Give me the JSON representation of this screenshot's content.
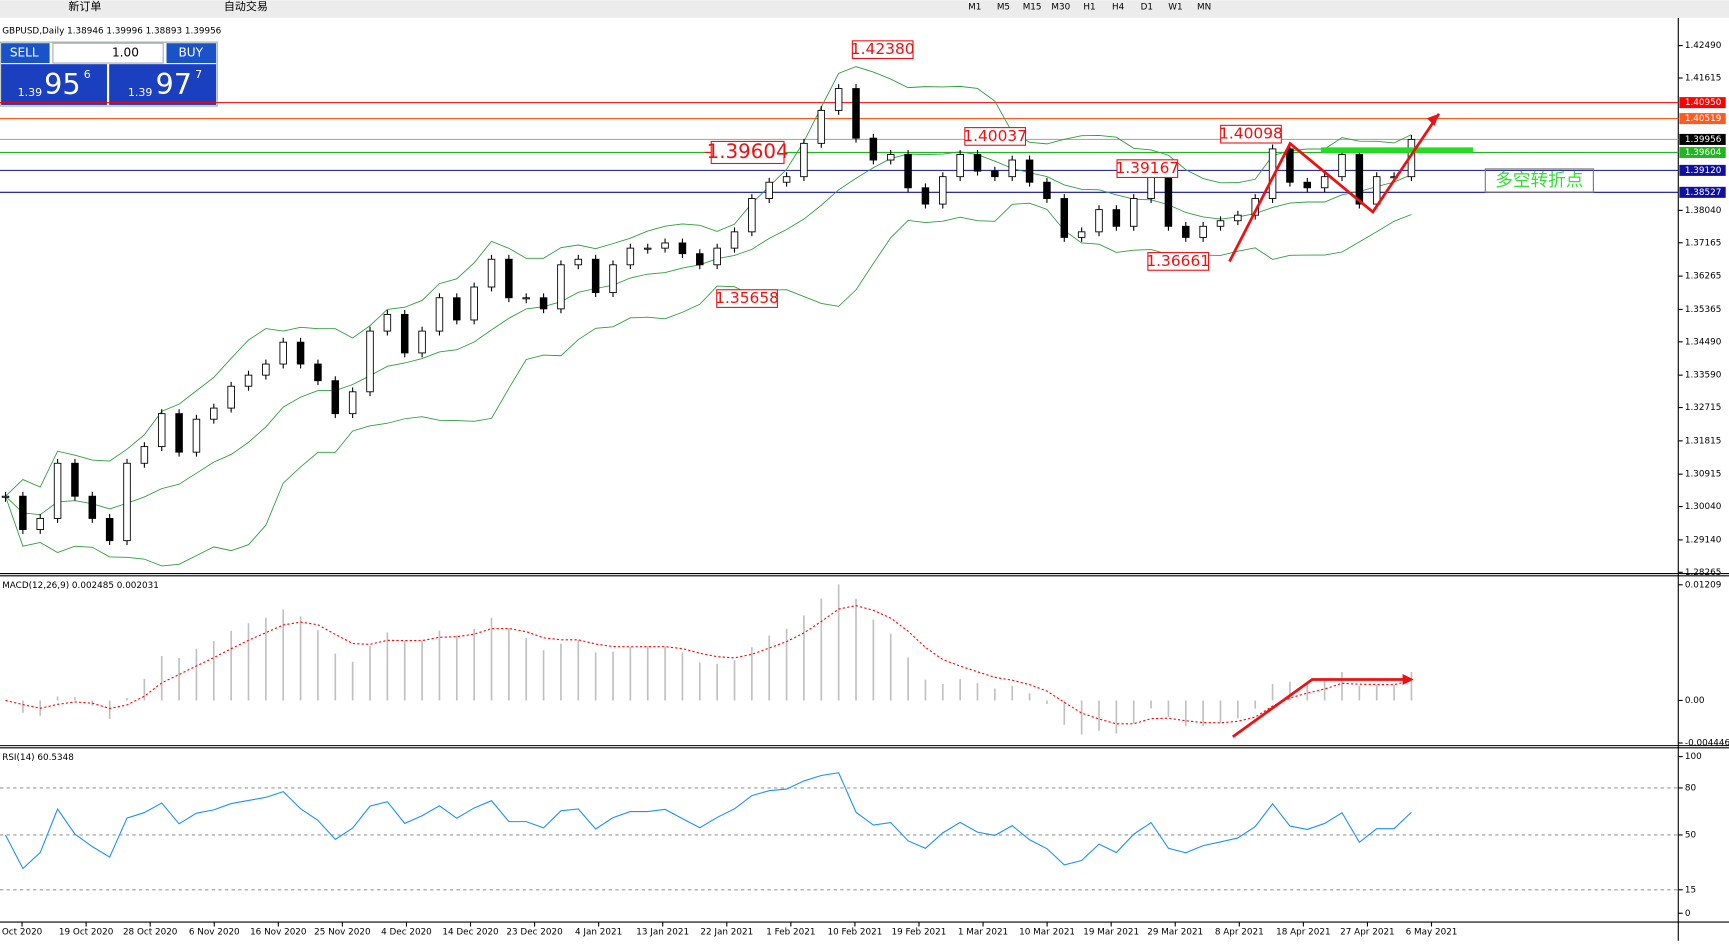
{
  "toolbar": {
    "new_order": "新订单",
    "auto_trade": "自动交易",
    "timeframes": [
      "M1",
      "M5",
      "M15",
      "M30",
      "H1",
      "H4",
      "D1",
      "W1",
      "MN"
    ]
  },
  "trade_panel": {
    "sell": "SELL",
    "buy": "BUY",
    "lots": "1.00",
    "bid": {
      "prefix": "1.39",
      "big": "95",
      "small": "6"
    },
    "ask": {
      "prefix": "1.39",
      "big": "97",
      "small": "7"
    }
  },
  "chart_data": [
    {
      "type": "candlestick",
      "title": "GBPUSD,Daily  1.38946 1.39996 1.38893 1.39956",
      "categories": [
        "Oct 2020",
        "19 Oct 2020",
        "28 Oct 2020",
        "6 Nov 2020",
        "16 Nov 2020",
        "25 Nov 2020",
        "4 Dec 2020",
        "14 Dec 2020",
        "23 Dec 2020",
        "4 Jan 2021",
        "13 Jan 2021",
        "22 Jan 2021",
        "1 Feb 2021",
        "10 Feb 2021",
        "19 Feb 2021",
        "1 Mar 2021",
        "10 Mar 2021",
        "19 Mar 2021",
        "29 Mar 2021",
        "8 Apr 2021",
        "18 Apr 2021",
        "27 Apr 2021",
        "6 May 2021"
      ],
      "closes": [
        1.3032,
        1.2942,
        1.2972,
        1.3121,
        1.3032,
        1.2972,
        1.2912,
        1.3121,
        1.3166,
        1.3255,
        1.3151,
        1.324,
        1.327,
        1.3329,
        1.3359,
        1.3389,
        1.3448,
        1.3389,
        1.3344,
        1.3255,
        1.3314,
        1.3478,
        1.3523,
        1.3419,
        1.3478,
        1.3568,
        1.3508,
        1.3597,
        1.3672,
        1.3568,
        1.3568,
        1.3538,
        1.3657,
        1.3672,
        1.3582,
        1.3657,
        1.3702,
        1.3702,
        1.3716,
        1.3687,
        1.3657,
        1.3702,
        1.3746,
        1.3836,
        1.388,
        1.3895,
        1.3985,
        1.4074,
        1.4133,
        1.3999,
        1.394,
        1.3955,
        1.3865,
        1.3821,
        1.3895,
        1.3955,
        1.391,
        1.3895,
        1.394,
        1.388,
        1.3836,
        1.3731,
        1.3746,
        1.3806,
        1.3761,
        1.3836,
        1.3895,
        1.3761,
        1.3731,
        1.3761,
        1.3776,
        1.3791,
        1.3836,
        1.397,
        1.388,
        1.3865,
        1.3895,
        1.3955,
        1.3821,
        1.3895,
        1.3895,
        1.39956
      ],
      "color_up": "#ffffff",
      "color_down": "#000000",
      "band_color": "#2e9e3e",
      "ylim": [
        1.2823,
        1.4318
      ],
      "yticks": [
        {
          "value": 1.4249,
          "label": "1.42490"
        },
        {
          "value": 1.41615,
          "label": "1.41615"
        },
        {
          "value": 1.3804,
          "label": "1.38040"
        },
        {
          "value": 1.37165,
          "label": "1.37165"
        },
        {
          "value": 1.36265,
          "label": "1.36265"
        },
        {
          "value": 1.35365,
          "label": "1.35365"
        },
        {
          "value": 1.3449,
          "label": "1.34490"
        },
        {
          "value": 1.3359,
          "label": "1.33590"
        },
        {
          "value": 1.32715,
          "label": "1.32715"
        },
        {
          "value": 1.31815,
          "label": "1.31815"
        },
        {
          "value": 1.30915,
          "label": "1.30915"
        },
        {
          "value": 1.3004,
          "label": "1.30040"
        },
        {
          "value": 1.2914,
          "label": "1.29140"
        },
        {
          "value": 1.28265,
          "label": "1.28265"
        }
      ],
      "levels": [
        {
          "value": 1.4095,
          "label": "1.40950",
          "color": "#ff0000"
        },
        {
          "value": 1.40519,
          "label": "1.40519",
          "color": "#ff5a1e"
        },
        {
          "value": 1.39956,
          "label": "1.39956",
          "color": "#000000"
        },
        {
          "value": 1.39604,
          "label": "1.39604",
          "color": "#21b521"
        },
        {
          "value": 1.3912,
          "label": "1.39120",
          "color": "#1010a0"
        },
        {
          "value": 1.38527,
          "label": "1.38527",
          "color": "#1010a0"
        }
      ],
      "price_labels": [
        {
          "value": 1.4238,
          "label": "1.42380"
        },
        {
          "value": 1.40037,
          "label": "1.40037"
        },
        {
          "value": 1.39167,
          "label": "1.39167"
        },
        {
          "value": 1.36661,
          "label": "1.36661"
        },
        {
          "value": 1.35658,
          "label": "1.35658"
        },
        {
          "value": 1.40098,
          "label": "1.40098"
        },
        {
          "value": 1.39604,
          "label": "1.39604"
        }
      ],
      "annotation": "多空转折点"
    },
    {
      "type": "macd",
      "title": "MACD(12,26,9) 0.002485 0.002031",
      "color": "#c0c0c0",
      "signal_color": "#ff0000",
      "ylim": [
        -0.00472,
        0.0128
      ],
      "yticks": [
        {
          "value": 0.01209,
          "label": "0.01209"
        },
        {
          "value": 0,
          "label": "0.00"
        },
        {
          "value": -0.004446,
          "label": "-0.004446"
        }
      ]
    },
    {
      "type": "rsi",
      "title": "RSI(14) 60.5348",
      "color": "#1e90ff",
      "ylim": [
        -5.6,
        104.2
      ],
      "yticks": [
        100,
        80,
        50,
        15,
        0
      ],
      "levels": [
        80,
        50,
        15
      ]
    }
  ]
}
